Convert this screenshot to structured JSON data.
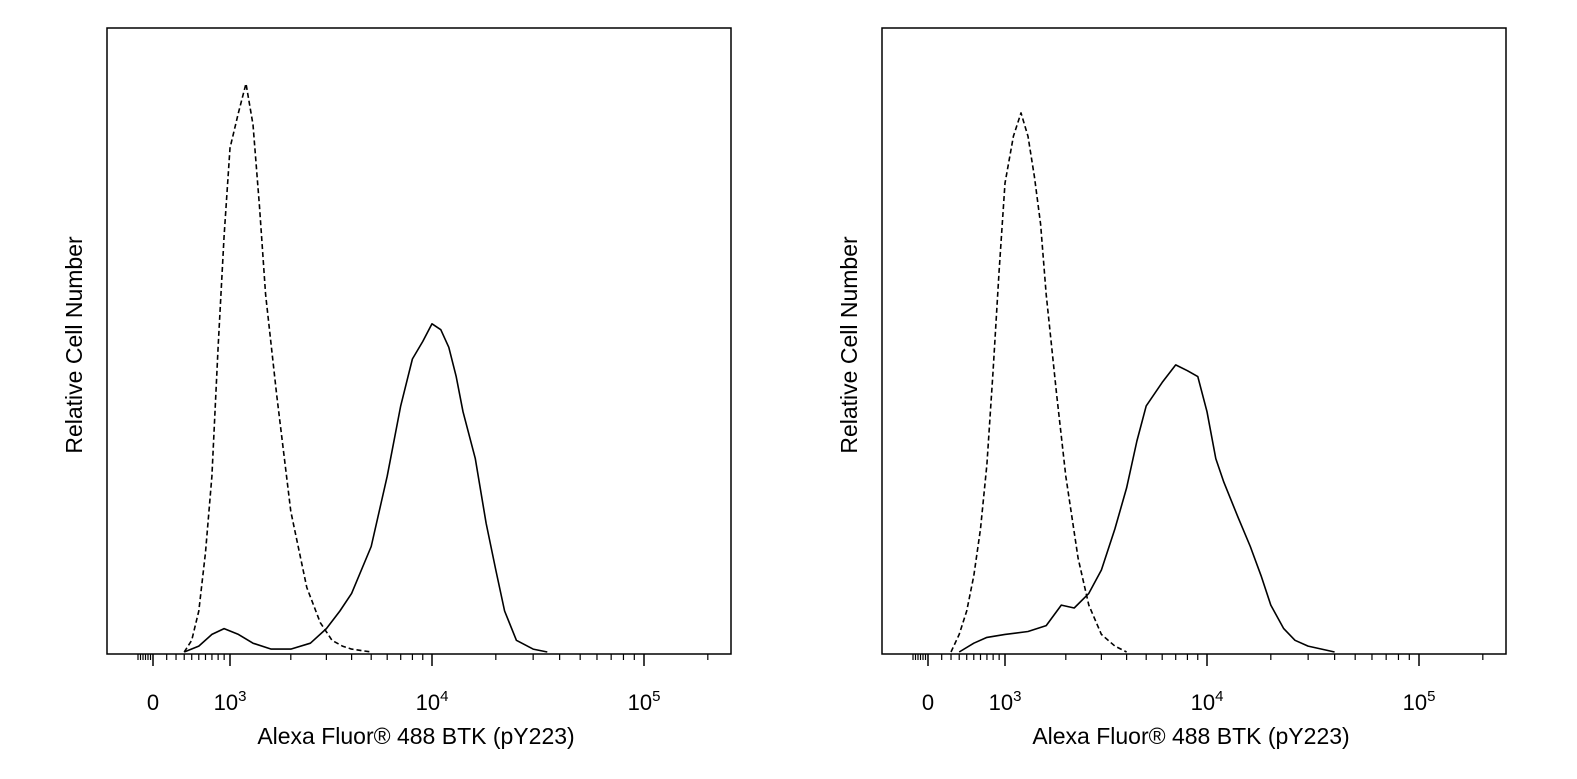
{
  "chart_data": [
    {
      "type": "area",
      "xlabel": "Alexa Fluor® 488 BTK (pY223)",
      "ylabel": "Relative Cell Number",
      "x_scale": "biexponential (logicle)",
      "xlim": [
        -300,
        250000
      ],
      "ylim": [
        0,
        100
      ],
      "grid": false,
      "x_tick_labels": [
        {
          "value": 0,
          "base": "0",
          "exp": ""
        },
        {
          "value": 1000,
          "base": "10",
          "exp": "3"
        },
        {
          "value": 10000,
          "base": "10",
          "exp": "4"
        },
        {
          "value": 100000,
          "base": "10",
          "exp": "5"
        }
      ],
      "series": [
        {
          "style": "dashed",
          "x": [
            300,
            400,
            500,
            600,
            700,
            800,
            900,
            1000,
            1100,
            1200,
            1300,
            1400,
            1500,
            1700,
            2000,
            2400,
            2800,
            3200,
            3600,
            4000,
            5000
          ],
          "y": [
            0,
            2,
            7,
            17,
            30,
            52,
            71,
            86,
            92,
            97,
            90,
            76,
            61,
            44,
            24,
            11,
            5,
            2,
            1,
            0.5,
            0
          ]
        },
        {
          "style": "solid",
          "x": [
            300,
            500,
            700,
            900,
            1100,
            1300,
            1600,
            2000,
            2500,
            3000,
            3500,
            4000,
            5000,
            6000,
            7000,
            8000,
            9000,
            10000,
            11000,
            12000,
            13000,
            14000,
            16000,
            18000,
            20000,
            22000,
            25000,
            30000,
            35000
          ],
          "y": [
            0,
            1,
            3,
            4,
            3,
            1.5,
            0.5,
            0.5,
            1.5,
            4,
            7,
            10,
            18,
            30,
            42,
            50,
            53,
            56,
            55,
            52,
            47,
            41,
            33,
            22,
            14,
            7,
            2,
            0.5,
            0
          ]
        }
      ]
    },
    {
      "type": "area",
      "xlabel": "Alexa Fluor® 488 BTK (pY223)",
      "ylabel": "Relative Cell Number",
      "x_scale": "biexponential (logicle)",
      "xlim": [
        -300,
        250000
      ],
      "ylim": [
        0,
        100
      ],
      "grid": false,
      "x_tick_labels": [
        {
          "value": 0,
          "base": "0",
          "exp": ""
        },
        {
          "value": 1000,
          "base": "10",
          "exp": "3"
        },
        {
          "value": 10000,
          "base": "10",
          "exp": "4"
        },
        {
          "value": 100000,
          "base": "10",
          "exp": "5"
        }
      ],
      "series": [
        {
          "style": "dashed",
          "x": [
            200,
            300,
            400,
            500,
            600,
            700,
            800,
            900,
            1000,
            1100,
            1200,
            1300,
            1400,
            1500,
            1600,
            1800,
            2000,
            2300,
            2600,
            3000,
            3500,
            4000
          ],
          "y": [
            0,
            3,
            7,
            13,
            21,
            32,
            48,
            65,
            80,
            88,
            92,
            88,
            81,
            73,
            61,
            44,
            30,
            16,
            8,
            3,
            1,
            0
          ]
        },
        {
          "style": "solid",
          "x": [
            300,
            500,
            700,
            1000,
            1300,
            1600,
            1900,
            2200,
            2600,
            3000,
            3500,
            4000,
            4500,
            5000,
            6000,
            7000,
            8000,
            9000,
            10000,
            11000,
            12000,
            14000,
            16000,
            18000,
            20000,
            23000,
            26000,
            30000,
            40000
          ],
          "y": [
            0,
            1.5,
            2.5,
            3,
            3.5,
            4.5,
            8,
            7.5,
            10,
            14,
            21,
            28,
            36,
            42,
            46,
            49,
            48,
            47,
            41,
            33,
            29,
            23,
            18,
            13,
            8,
            4,
            2,
            1,
            0
          ]
        }
      ]
    }
  ]
}
